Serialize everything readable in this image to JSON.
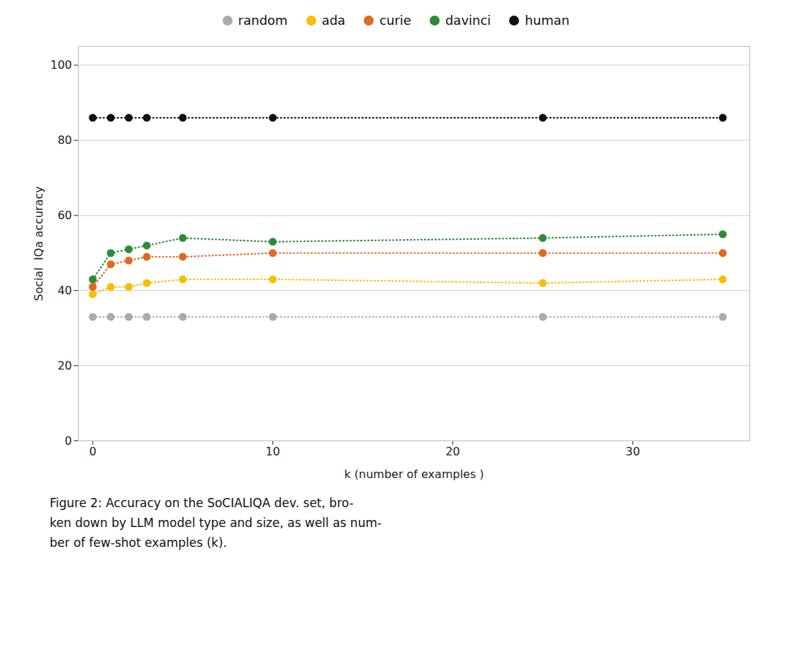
{
  "chart_data": {
    "type": "line",
    "x": [
      0,
      1,
      2,
      3,
      5,
      10,
      25,
      35
    ],
    "series": [
      {
        "name": "random",
        "color": "#aaaaaa",
        "values": [
          33,
          33,
          33,
          33,
          33,
          33,
          33,
          33
        ]
      },
      {
        "name": "ada",
        "color": "#f5c000",
        "values": [
          39,
          41,
          41,
          42,
          43,
          43,
          42,
          43
        ]
      },
      {
        "name": "curie",
        "color": "#e06820",
        "values": [
          41,
          47,
          48,
          49,
          49,
          50,
          50,
          50
        ]
      },
      {
        "name": "davinci",
        "color": "#2e8b35",
        "values": [
          43,
          50,
          51,
          52,
          54,
          53,
          54,
          55
        ]
      },
      {
        "name": "human",
        "color": "#111111",
        "values": [
          86,
          86,
          86,
          86,
          86,
          86,
          86,
          86
        ]
      }
    ],
    "xlabel": "k (number of examples )",
    "ylabel": "Social  IQa accuracy",
    "caption": "Figure 2:  Accuracy on the SᴏCIALIQA dev.  set, bro-\nken down by LLM model type and size, as well as num-\nber of few-shot examples (k).",
    "xlim": [
      -0.8,
      36.5
    ],
    "ylim": [
      0,
      105
    ],
    "xticks": [
      0,
      10,
      20,
      30
    ],
    "yticks": [
      0,
      20,
      40,
      60,
      80,
      100
    ],
    "grid": true,
    "legend": "top",
    "marker": "o",
    "line_style": "dotted"
  }
}
